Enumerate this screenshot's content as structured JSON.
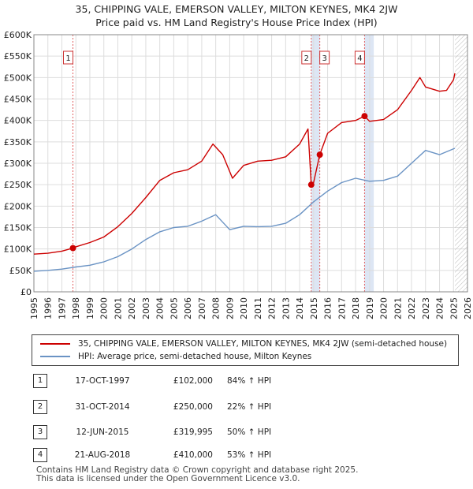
{
  "title_line1": "35, CHIPPING VALE, EMERSON VALLEY, MILTON KEYNES, MK4 2JW",
  "title_line2": "Price paid vs. HM Land Registry's House Price Index (HPI)",
  "colors": {
    "property": "#cc0000",
    "hpi": "#6a93c4",
    "grid": "#dddddd",
    "shade": "#dde6f4",
    "marker_line": "#e06060"
  },
  "legend": {
    "property_label": "35, CHIPPING VALE, EMERSON VALLEY, MILTON KEYNES, MK4 2JW (semi-detached house)",
    "hpi_label": "HPI: Average price, semi-detached house, Milton Keynes"
  },
  "sales": [
    {
      "num": "1",
      "date": "17-OCT-1997",
      "price": "£102,000",
      "hpi": "84% ↑ HPI"
    },
    {
      "num": "2",
      "date": "31-OCT-2014",
      "price": "£250,000",
      "hpi": "22% ↑ HPI"
    },
    {
      "num": "3",
      "date": "12-JUN-2015",
      "price": "£319,995",
      "hpi": "50% ↑ HPI"
    },
    {
      "num": "4",
      "date": "21-AUG-2018",
      "price": "£410,000",
      "hpi": "53% ↑ HPI"
    }
  ],
  "footer_line1": "Contains HM Land Registry data © Crown copyright and database right 2025.",
  "footer_line2": "This data is licensed under the Open Government Licence v3.0.",
  "chart_data": {
    "type": "line",
    "title": "Price paid vs. HM Land Registry's House Price Index (HPI)",
    "xlim": [
      1995,
      2026
    ],
    "ylim": [
      0,
      600000
    ],
    "x_ticks": [
      "1995",
      "1996",
      "1997",
      "1998",
      "1999",
      "2000",
      "2001",
      "2002",
      "2003",
      "2004",
      "2005",
      "2006",
      "2007",
      "2008",
      "2009",
      "2010",
      "2011",
      "2012",
      "2013",
      "2014",
      "2015",
      "2016",
      "2017",
      "2018",
      "2019",
      "2020",
      "2021",
      "2022",
      "2023",
      "2024",
      "2025",
      "2026"
    ],
    "y_ticks": [
      {
        "value": 0,
        "label": "£0"
      },
      {
        "value": 50000,
        "label": "£50K"
      },
      {
        "value": 100000,
        "label": "£100K"
      },
      {
        "value": 150000,
        "label": "£150K"
      },
      {
        "value": 200000,
        "label": "£200K"
      },
      {
        "value": 250000,
        "label": "£250K"
      },
      {
        "value": 300000,
        "label": "£300K"
      },
      {
        "value": 350000,
        "label": "£350K"
      },
      {
        "value": 400000,
        "label": "£400K"
      },
      {
        "value": 450000,
        "label": "£450K"
      },
      {
        "value": 500000,
        "label": "£500K"
      },
      {
        "value": 550000,
        "label": "£550K"
      },
      {
        "value": 600000,
        "label": "£600K"
      }
    ],
    "shaded_periods": [
      [
        2014.83,
        2015.44
      ],
      [
        2018.64,
        2019.3
      ]
    ],
    "future_hatch_from": 2025.1,
    "markers": [
      {
        "num": "1",
        "x": 1997.79,
        "y": 102000
      },
      {
        "num": "2",
        "x": 2014.83,
        "y": 250000
      },
      {
        "num": "3",
        "x": 2015.44,
        "y": 319995
      },
      {
        "num": "4",
        "x": 2018.64,
        "y": 410000
      }
    ],
    "series": [
      {
        "name": "35, CHIPPING VALE, EMERSON VALLEY, MILTON KEYNES, MK4 2JW (semi-detached house)",
        "x": [
          1995,
          1996,
          1997,
          1997.79,
          1998,
          1999,
          2000,
          2001,
          2002,
          2003,
          2004,
          2005,
          2006,
          2007,
          2007.8,
          2008.5,
          2009.2,
          2010,
          2011,
          2012,
          2013,
          2014,
          2014.6,
          2014.83,
          2015,
          2015.44,
          2016,
          2017,
          2018,
          2018.64,
          2019,
          2020,
          2021,
          2022,
          2022.6,
          2023,
          2024,
          2024.5,
          2025,
          2025.1
        ],
        "y": [
          88000,
          90000,
          95000,
          102000,
          105000,
          115000,
          128000,
          152000,
          183000,
          220000,
          260000,
          278000,
          285000,
          305000,
          345000,
          320000,
          265000,
          295000,
          305000,
          307000,
          315000,
          345000,
          380000,
          250000,
          255000,
          319995,
          370000,
          395000,
          400000,
          410000,
          398000,
          402000,
          425000,
          470000,
          500000,
          478000,
          468000,
          470000,
          495000,
          510000
        ]
      },
      {
        "name": "HPI: Average price, semi-detached house, Milton Keynes",
        "x": [
          1995,
          1996,
          1997,
          1998,
          1999,
          2000,
          2001,
          2002,
          2003,
          2004,
          2005,
          2006,
          2007,
          2008,
          2009,
          2010,
          2011,
          2012,
          2013,
          2014,
          2015,
          2016,
          2017,
          2018,
          2019,
          2020,
          2021,
          2022,
          2023,
          2024,
          2025.1
        ],
        "y": [
          48000,
          50000,
          53000,
          58000,
          62000,
          70000,
          82000,
          100000,
          122000,
          140000,
          150000,
          153000,
          165000,
          180000,
          145000,
          153000,
          152000,
          153000,
          160000,
          180000,
          210000,
          235000,
          255000,
          265000,
          258000,
          260000,
          270000,
          300000,
          330000,
          320000,
          335000
        ]
      }
    ]
  }
}
